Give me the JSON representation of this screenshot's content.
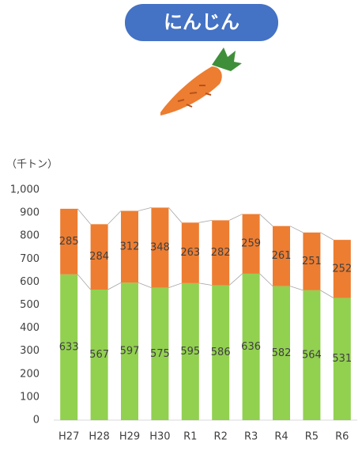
{
  "chart_data": {
    "type": "stacked_bar",
    "title": "にんじん",
    "y_label": "（千トン）",
    "categories": [
      "H27",
      "H28",
      "H29",
      "H30",
      "R1",
      "R2",
      "R3",
      "R4",
      "R5",
      "R6"
    ],
    "series": [
      {
        "color": "#92d050",
        "values": [
          633,
          567,
          597,
          575,
          595,
          586,
          636,
          582,
          564,
          531
        ]
      },
      {
        "color": "#ed7d31",
        "values": [
          285,
          284,
          312,
          348,
          263,
          282,
          259,
          261,
          251,
          252
        ]
      }
    ],
    "ylim": [
      0,
      1000
    ],
    "yticks": [
      0,
      100,
      200,
      300,
      400,
      500,
      600,
      700,
      800,
      900,
      {
        "value": 1000,
        "label": "1,000"
      }
    ],
    "grid": false
  }
}
